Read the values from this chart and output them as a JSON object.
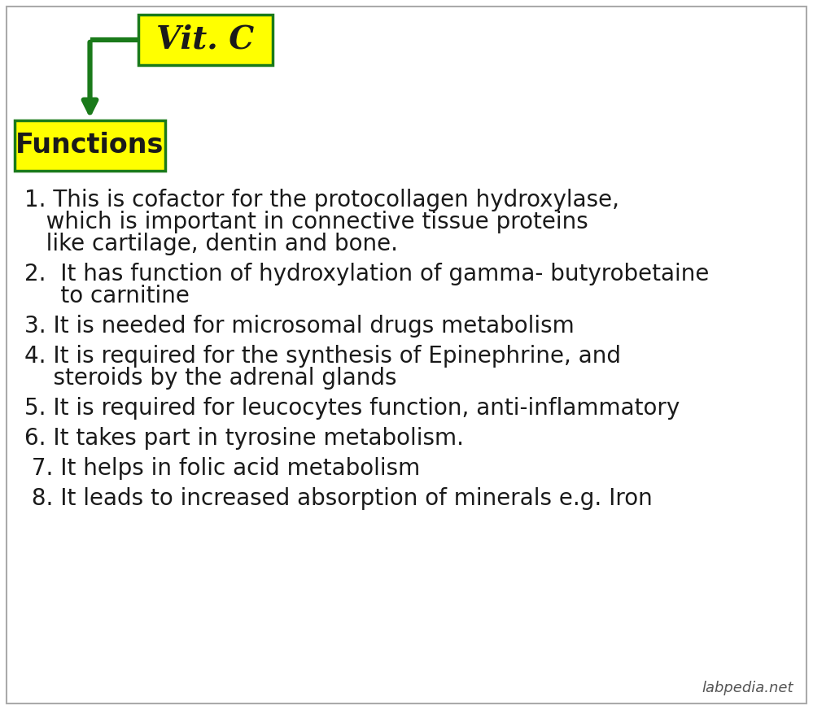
{
  "background_color": "#ffffff",
  "border_color": "#aaaaaa",
  "title_box_text": "Vit. C",
  "title_box_color": "#ffff00",
  "title_box_border": "#1a7a1a",
  "functions_box_text": "Functions",
  "functions_box_color": "#ffff00",
  "functions_box_border": "#1a7a1a",
  "arrow_color": "#1a7a1a",
  "text_color": "#1a1a1a",
  "items": [
    [
      "1. This is cofactor for the protocollagen hydroxylase,",
      "   which is important in connective tissue proteins",
      "   like cartilage, dentin and bone."
    ],
    [
      "2.  It has function of hydroxylation of gamma- butyrobetaine",
      "     to carnitine"
    ],
    [
      "3. It is needed for microsomal drugs metabolism"
    ],
    [
      "4. It is required for the synthesis of Epinephrine, and",
      "    steroids by the adrenal glands"
    ],
    [
      "5. It is required for leucocytes function, anti-inflammatory"
    ],
    [
      "6. It takes part in tyrosine metabolism."
    ],
    [
      " 7. It helps in folic acid metabolism"
    ],
    [
      " 8. It leads to increased absorption of minerals e.g. Iron"
    ]
  ],
  "watermark": "labpedia.net",
  "title_fontsize": 28,
  "func_fontsize": 24,
  "item_fontsize": 20,
  "watermark_fontsize": 13
}
